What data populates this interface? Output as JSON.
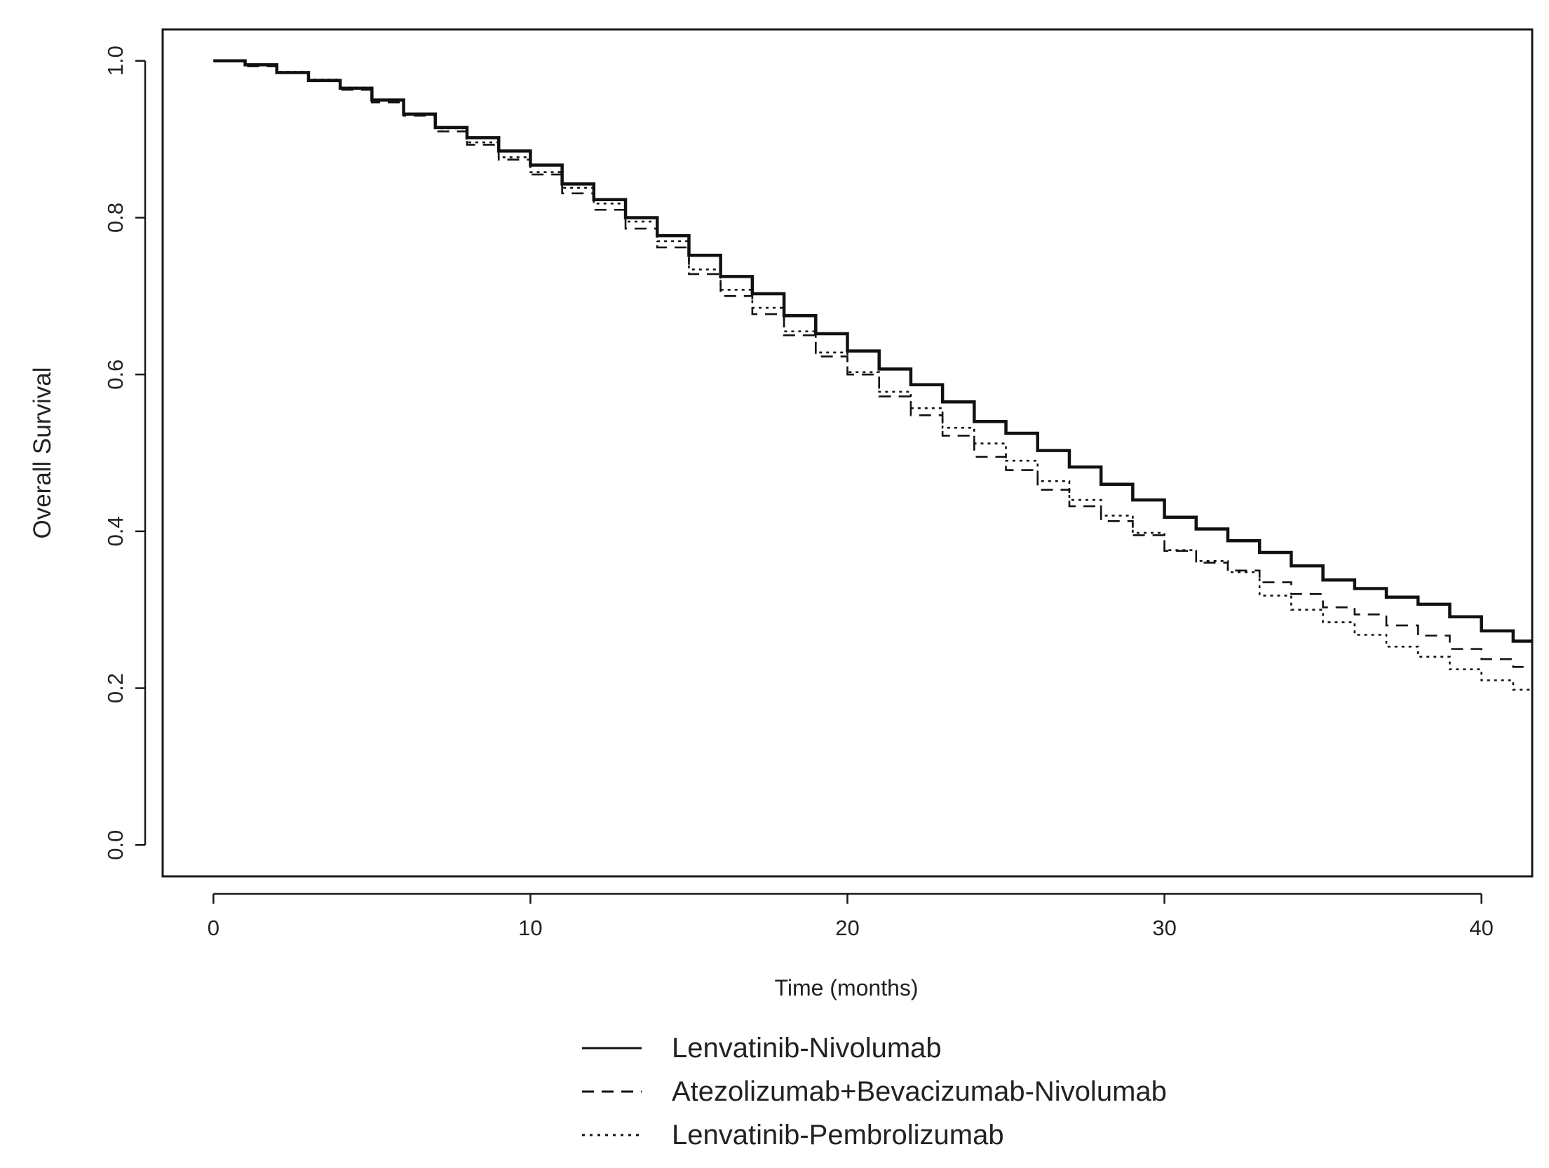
{
  "chart_data": {
    "type": "line",
    "xlabel": "Time (months)",
    "ylabel": "Overall Survival",
    "xlim": [
      -1.6,
      41.6
    ],
    "ylim": [
      -0.04,
      1.04
    ],
    "x_ticks": [
      0,
      10,
      20,
      30,
      40
    ],
    "y_ticks": [
      0.0,
      0.2,
      0.4,
      0.6,
      0.8,
      1.0
    ],
    "x_tick_labels": [
      "0",
      "10",
      "20",
      "30",
      "40"
    ],
    "y_tick_labels": [
      "0.0",
      "0.2",
      "0.4",
      "0.6",
      "0.8",
      "1.0"
    ],
    "step": true,
    "legend_position": "bottom-center",
    "series": [
      {
        "name": "Lenvatinib-Nivolumab",
        "line_style": "solid",
        "color": "#111111",
        "x": [
          0,
          1,
          2,
          3,
          4,
          5,
          6,
          7,
          8,
          9,
          10,
          11,
          12,
          13,
          14,
          15,
          16,
          17,
          18,
          19,
          20,
          21,
          22,
          23,
          24,
          25,
          26,
          27,
          28,
          29,
          30,
          31,
          32,
          33,
          34,
          35,
          36,
          37,
          38,
          39,
          40,
          41,
          41.6
        ],
        "y": [
          1.0,
          0.995,
          0.985,
          0.975,
          0.965,
          0.95,
          0.932,
          0.915,
          0.902,
          0.885,
          0.867,
          0.843,
          0.823,
          0.8,
          0.777,
          0.752,
          0.725,
          0.703,
          0.675,
          0.652,
          0.63,
          0.607,
          0.587,
          0.565,
          0.54,
          0.525,
          0.503,
          0.482,
          0.46,
          0.44,
          0.418,
          0.403,
          0.388,
          0.373,
          0.356,
          0.338,
          0.327,
          0.316,
          0.307,
          0.291,
          0.273,
          0.26,
          0.26
        ]
      },
      {
        "name": "Atezolizumab+Bevacizumab-Nivolumab",
        "line_style": "dashed",
        "color": "#111111",
        "x": [
          0,
          1,
          2,
          3,
          4,
          5,
          6,
          7,
          8,
          9,
          10,
          11,
          12,
          13,
          14,
          15,
          16,
          17,
          18,
          19,
          20,
          21,
          22,
          23,
          24,
          25,
          26,
          27,
          28,
          29,
          30,
          31,
          32,
          33,
          34,
          35,
          36,
          37,
          38,
          39,
          40,
          41,
          41.6
        ],
        "y": [
          1.0,
          0.993,
          0.985,
          0.974,
          0.963,
          0.947,
          0.93,
          0.91,
          0.893,
          0.874,
          0.855,
          0.831,
          0.81,
          0.786,
          0.762,
          0.728,
          0.7,
          0.677,
          0.65,
          0.623,
          0.6,
          0.572,
          0.548,
          0.522,
          0.495,
          0.478,
          0.453,
          0.432,
          0.413,
          0.395,
          0.375,
          0.36,
          0.35,
          0.335,
          0.32,
          0.303,
          0.294,
          0.28,
          0.267,
          0.25,
          0.237,
          0.227,
          0.227
        ]
      },
      {
        "name": "Lenvatinib-Pembrolizumab",
        "line_style": "dotted",
        "color": "#111111",
        "x": [
          0,
          1,
          2,
          3,
          4,
          5,
          6,
          7,
          8,
          9,
          10,
          11,
          12,
          13,
          14,
          15,
          16,
          17,
          18,
          19,
          20,
          21,
          22,
          23,
          24,
          25,
          26,
          27,
          28,
          29,
          30,
          31,
          32,
          33,
          34,
          35,
          36,
          37,
          38,
          39,
          40,
          41,
          41.6
        ],
        "y": [
          1.0,
          0.995,
          0.986,
          0.976,
          0.966,
          0.95,
          0.932,
          0.914,
          0.896,
          0.877,
          0.858,
          0.838,
          0.818,
          0.795,
          0.77,
          0.734,
          0.708,
          0.685,
          0.655,
          0.628,
          0.603,
          0.578,
          0.557,
          0.532,
          0.512,
          0.49,
          0.464,
          0.44,
          0.42,
          0.398,
          0.376,
          0.362,
          0.348,
          0.318,
          0.3,
          0.284,
          0.268,
          0.253,
          0.24,
          0.224,
          0.21,
          0.198,
          0.198
        ]
      }
    ]
  }
}
